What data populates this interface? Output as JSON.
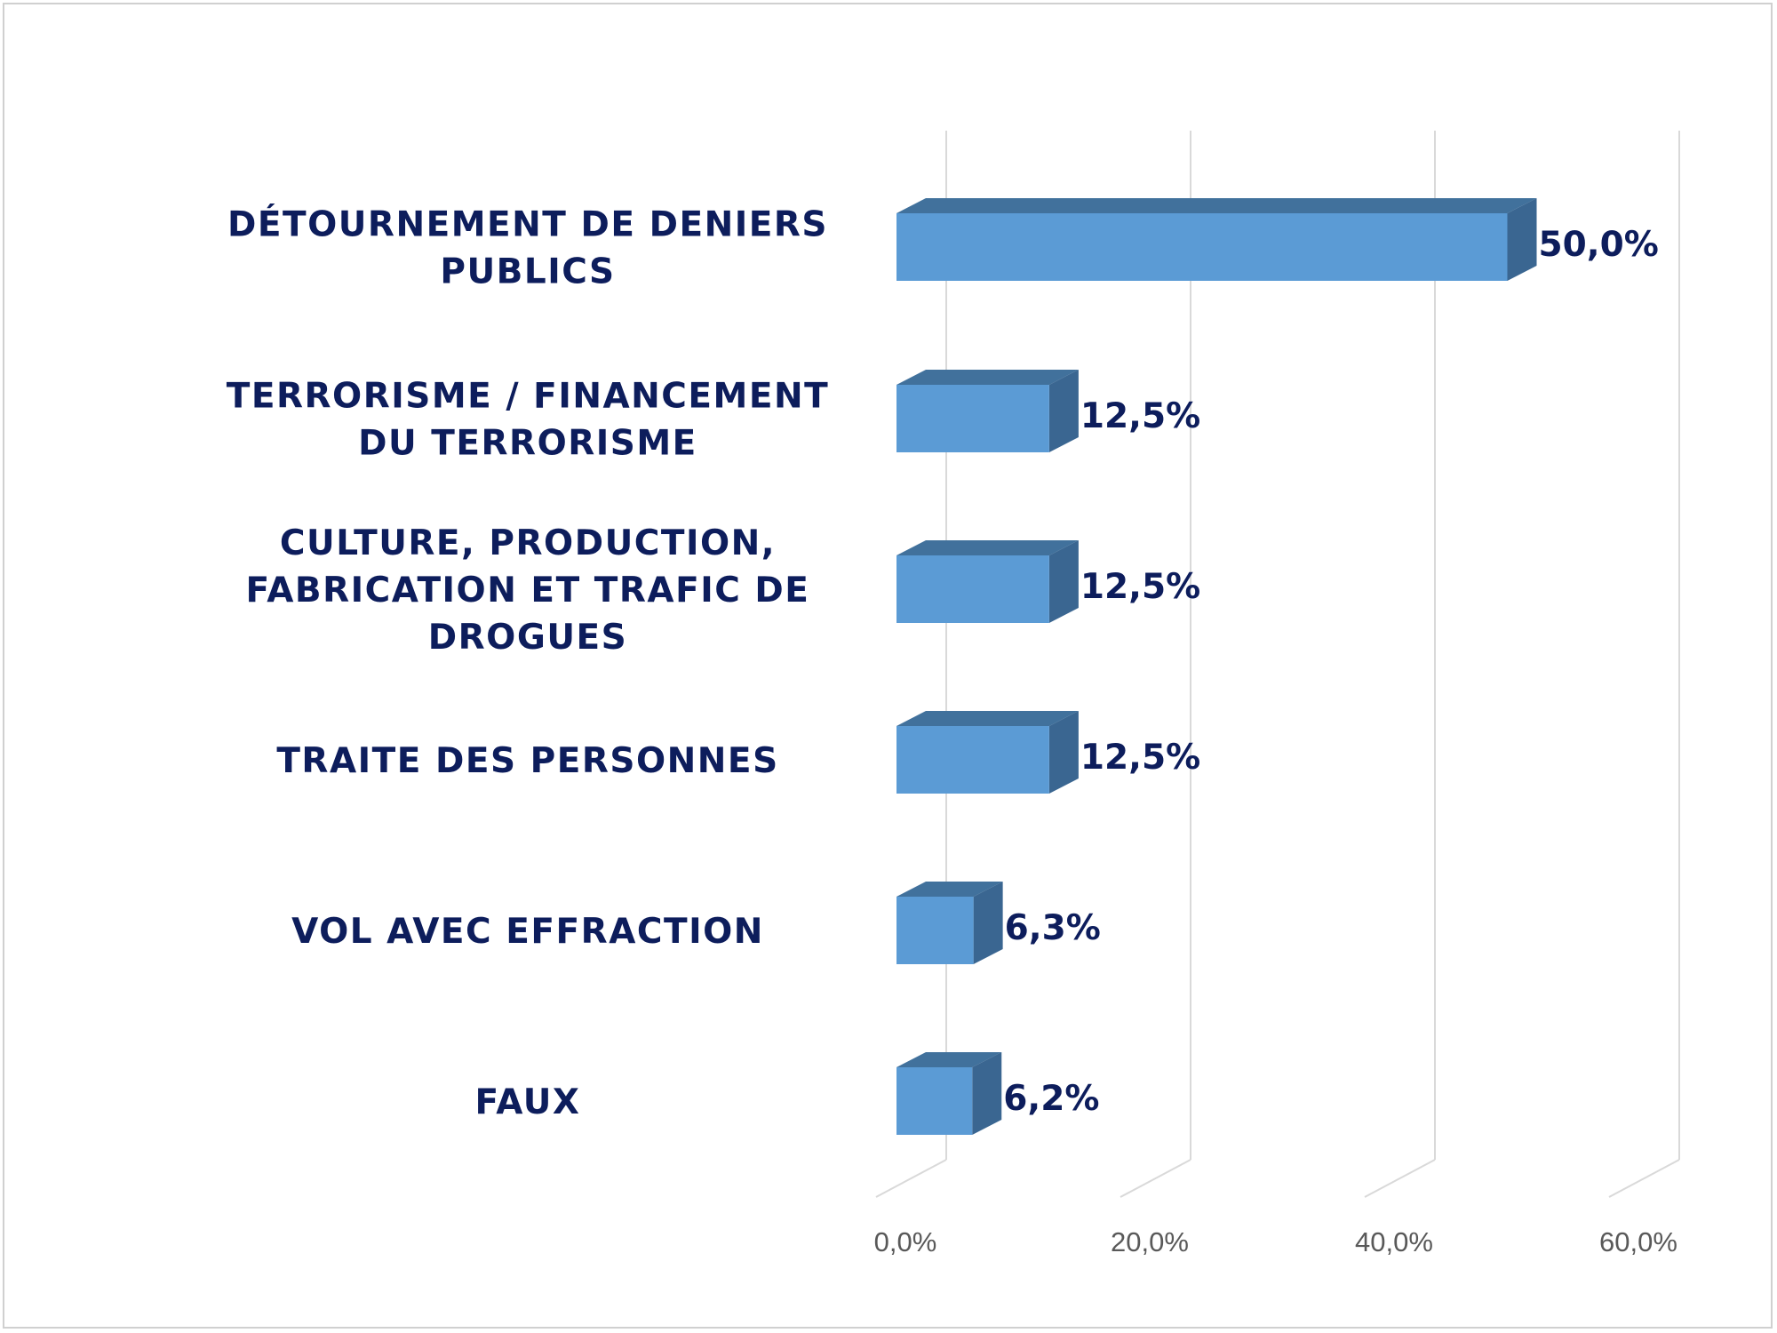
{
  "chart_data": {
    "type": "bar",
    "orientation": "horizontal",
    "style": "3d",
    "categories": [
      "DÉTOURNEMENT DE DENIERS PUBLICS",
      "TERRORISME / FINANCEMENT DU TERRORISME",
      "CULTURE, PRODUCTION, FABRICATION ET TRAFIC DE DROGUES",
      "TRAITE DES PERSONNES",
      "VOL AVEC EFFRACTION",
      "FAUX"
    ],
    "category_lines": [
      [
        "DÉTOURNEMENT DE DENIERS",
        "PUBLICS"
      ],
      [
        "TERRORISME / FINANCEMENT",
        "DU TERRORISME"
      ],
      [
        "CULTURE, PRODUCTION,",
        "FABRICATION ET TRAFIC DE",
        "DROGUES"
      ],
      [
        "TRAITE DES PERSONNES"
      ],
      [
        "VOL AVEC EFFRACTION"
      ],
      [
        "FAUX"
      ]
    ],
    "values": [
      50.0,
      12.5,
      12.5,
      12.5,
      6.3,
      6.2
    ],
    "data_labels": [
      "50,0%",
      "12,5%",
      "12,5%",
      "12,5%",
      "6,3%",
      "6,2%"
    ],
    "xlim": [
      0,
      60
    ],
    "x_ticks": [
      0,
      20,
      40,
      60
    ],
    "x_tick_labels": [
      "0,0%",
      "20,0%",
      "40,0%",
      "60,0%"
    ],
    "grid": true,
    "legend": "none",
    "colors": {
      "bar_front": "#5b9bd5",
      "bar_top": "#41719c",
      "bar_side": "#3a6691",
      "label_text": "#0d1d5c",
      "gridline": "#d9d9d9",
      "tick_text": "#595959"
    }
  }
}
